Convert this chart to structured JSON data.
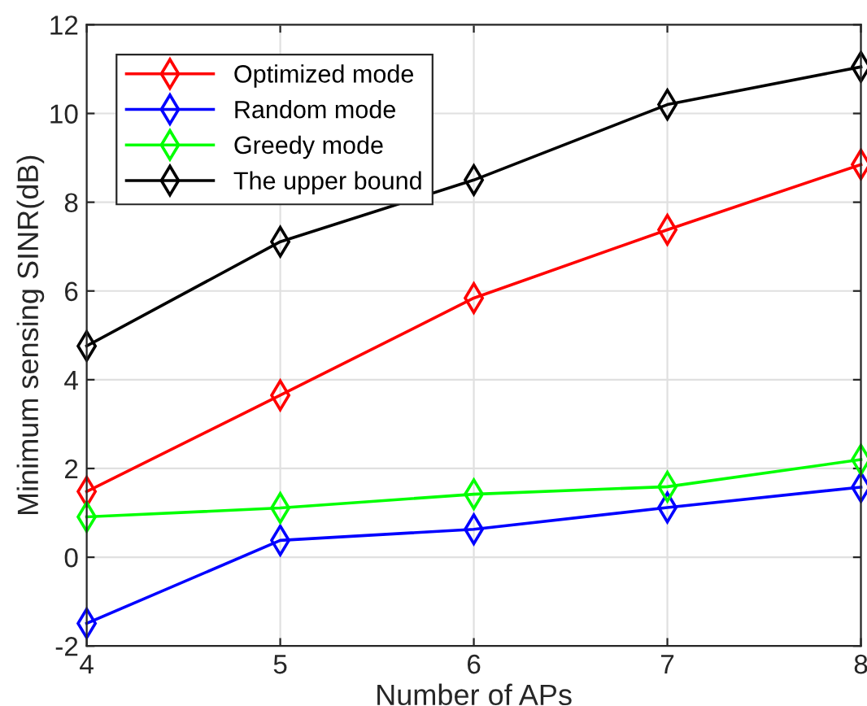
{
  "chart_data": {
    "type": "line",
    "xlabel": "Number of APs",
    "ylabel": "Minimum sensing SINR(dB)",
    "x": [
      4,
      5,
      6,
      7,
      8
    ],
    "series": [
      {
        "name": "Optimized mode",
        "color": "#ff0000",
        "values": [
          1.48,
          3.65,
          5.84,
          7.38,
          8.85
        ]
      },
      {
        "name": "Random mode",
        "color": "#0000ff",
        "values": [
          -1.49,
          0.38,
          0.63,
          1.12,
          1.58
        ]
      },
      {
        "name": "Greedy mode",
        "color": "#00ff00",
        "values": [
          0.91,
          1.11,
          1.42,
          1.59,
          2.2
        ]
      },
      {
        "name": "The upper bound",
        "color": "#000000",
        "values": [
          4.76,
          7.11,
          8.5,
          10.2,
          11.05
        ]
      }
    ],
    "xlim": [
      4,
      8
    ],
    "xticks": [
      4,
      5,
      6,
      7,
      8
    ],
    "ylim": [
      -2,
      12
    ],
    "yticks": [
      -2,
      0,
      2,
      4,
      6,
      8,
      10,
      12
    ],
    "grid": true,
    "legend": "top left",
    "marker": "diamond",
    "line_style": "solid"
  }
}
